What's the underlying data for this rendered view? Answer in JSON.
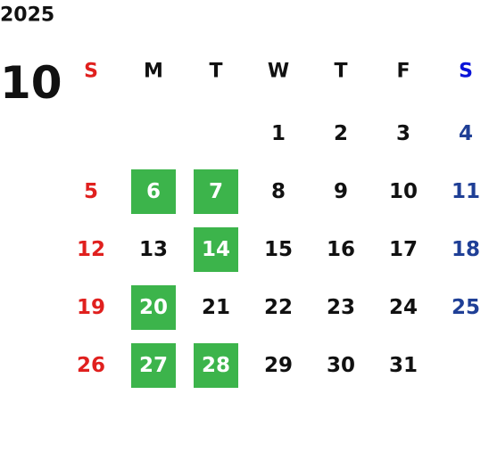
{
  "year": "2025",
  "month": "10",
  "weekdays": [
    "S",
    "M",
    "T",
    "W",
    "T",
    "F",
    "S"
  ],
  "weeks": [
    [
      null,
      null,
      null,
      1,
      2,
      3,
      4
    ],
    [
      5,
      6,
      7,
      8,
      9,
      10,
      11
    ],
    [
      12,
      13,
      14,
      15,
      16,
      17,
      18
    ],
    [
      19,
      20,
      21,
      22,
      23,
      24,
      25
    ],
    [
      26,
      27,
      28,
      29,
      30,
      31,
      null
    ]
  ],
  "highlighted": [
    6,
    7,
    14,
    20,
    27,
    28
  ],
  "colors": {
    "sunday": "#e0201e",
    "saturday_header": "#0a14d8",
    "saturday": "#1f3f96",
    "weekday": "#111111",
    "highlight": "#3cb44b",
    "highlight_text": "#ffffff"
  }
}
